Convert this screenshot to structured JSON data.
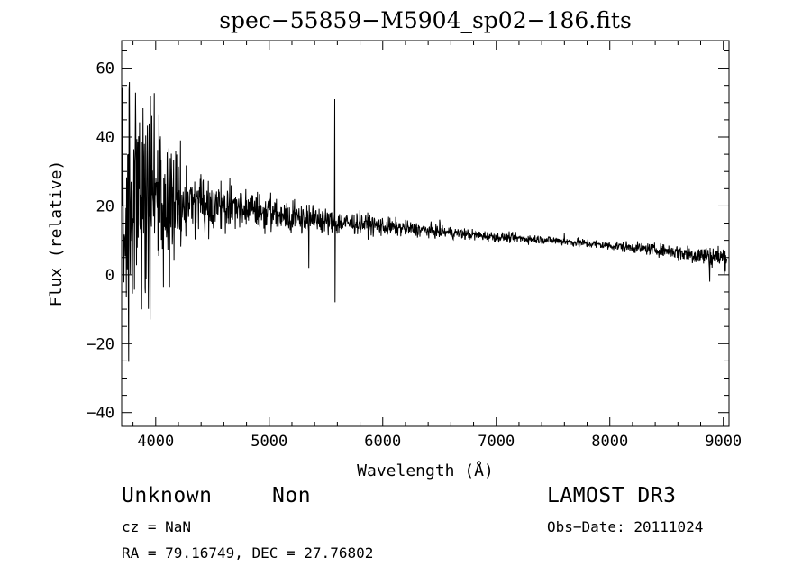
{
  "chart_data": {
    "type": "line",
    "title": "spec−55859−M5904_sp02−186.fits",
    "xlabel": "Wavelength (Å)",
    "ylabel": "Flux (relative)",
    "xlim": [
      3700,
      9050
    ],
    "ylim": [
      -44,
      68
    ],
    "xticks": [
      4000,
      5000,
      6000,
      7000,
      8000,
      9000
    ],
    "xtick_labels": [
      "4000",
      "5000",
      "6000",
      "7000",
      "8000",
      "9000"
    ],
    "yticks": [
      -40,
      -20,
      0,
      20,
      40,
      60
    ],
    "ytick_labels": [
      "−40",
      "−20",
      "0",
      "20",
      "40",
      "60"
    ],
    "grid": false,
    "series": [
      {
        "name": "flux",
        "envelope": [
          [
            3700,
            22,
            30
          ],
          [
            3800,
            20,
            26
          ],
          [
            3900,
            21,
            24
          ],
          [
            4000,
            21,
            20
          ],
          [
            4100,
            22,
            16
          ],
          [
            4200,
            22,
            12
          ],
          [
            4300,
            21,
            9
          ],
          [
            4400,
            20,
            7
          ],
          [
            4600,
            20,
            5
          ],
          [
            4800,
            19,
            4
          ],
          [
            5000,
            18,
            3.5
          ],
          [
            5200,
            17,
            3
          ],
          [
            5400,
            16,
            2.8
          ],
          [
            5600,
            15,
            2.6
          ],
          [
            5800,
            15,
            2.2
          ],
          [
            6000,
            14,
            2
          ],
          [
            6200,
            13.5,
            1.6
          ],
          [
            6500,
            12.5,
            1.3
          ],
          [
            7000,
            11,
            1
          ],
          [
            7500,
            10,
            0.9
          ],
          [
            8000,
            8.5,
            1
          ],
          [
            8500,
            7,
            1.3
          ],
          [
            8700,
            6,
            2
          ],
          [
            9000,
            5,
            2.5
          ]
        ],
        "features": [
          {
            "x": 5577,
            "y": 51
          },
          {
            "x": 5580,
            "y": -8
          },
          {
            "x": 5350,
            "y": 2
          },
          {
            "x": 6500,
            "y": 16
          },
          {
            "x": 7600,
            "y": 12
          },
          {
            "x": 8880,
            "y": -2
          }
        ]
      }
    ]
  },
  "footer": {
    "object_class": "Unknown",
    "object_subclass": "Non",
    "survey": "LAMOST DR3",
    "cz": "cz = NaN",
    "obs_date": "Obs−Date: 20111024",
    "radec": "RA =  79.16749, DEC =  27.76802"
  }
}
